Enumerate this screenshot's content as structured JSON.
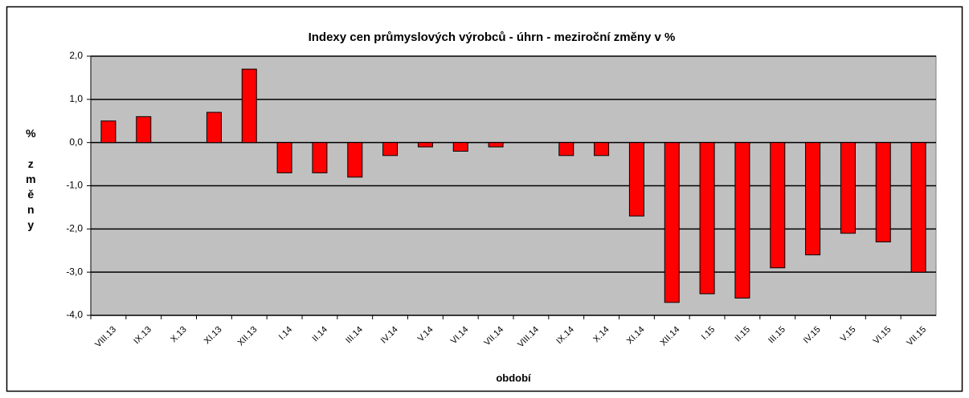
{
  "chart_data": {
    "type": "bar",
    "title": "Indexy cen průmyslových  výrobců - úhrn - meziroční změny v %",
    "xlabel": "období",
    "ylabel": "% změny",
    "categories": [
      "VIII.13",
      "IX.13",
      "X.13",
      "XI.13",
      "XII.13",
      "I.14",
      "II.14",
      "III.14",
      "IV.14",
      "V.14",
      "VI.14",
      "VII.14",
      "VIII.14",
      "IX.14",
      "X.14",
      "XI.14",
      "XII.14",
      "I.15",
      "II.15",
      "III.15",
      "IV.15",
      "V.15",
      "VI.15",
      "VII.15"
    ],
    "values": [
      0.5,
      0.6,
      0,
      0.7,
      1.7,
      -0.7,
      -0.7,
      -0.8,
      -0.3,
      -0.1,
      -0.2,
      -0.1,
      0,
      -0.3,
      -0.3,
      -1.7,
      -3.7,
      -3.5,
      -3.6,
      -2.9,
      -2.6,
      -2.1,
      -2.3,
      -3.0
    ],
    "color": "#ff0000",
    "ylim": [
      -4,
      2
    ],
    "yticks": [
      {
        "value": -4,
        "label": "-4,0"
      },
      {
        "value": -3,
        "label": "-3,0"
      },
      {
        "value": -2,
        "label": "-2,0"
      },
      {
        "value": -1,
        "label": "-1,0"
      },
      {
        "value": 0,
        "label": "0,0"
      },
      {
        "value": 1,
        "label": "1,0"
      },
      {
        "value": 2,
        "label": "2,0"
      }
    ],
    "grid": true
  }
}
